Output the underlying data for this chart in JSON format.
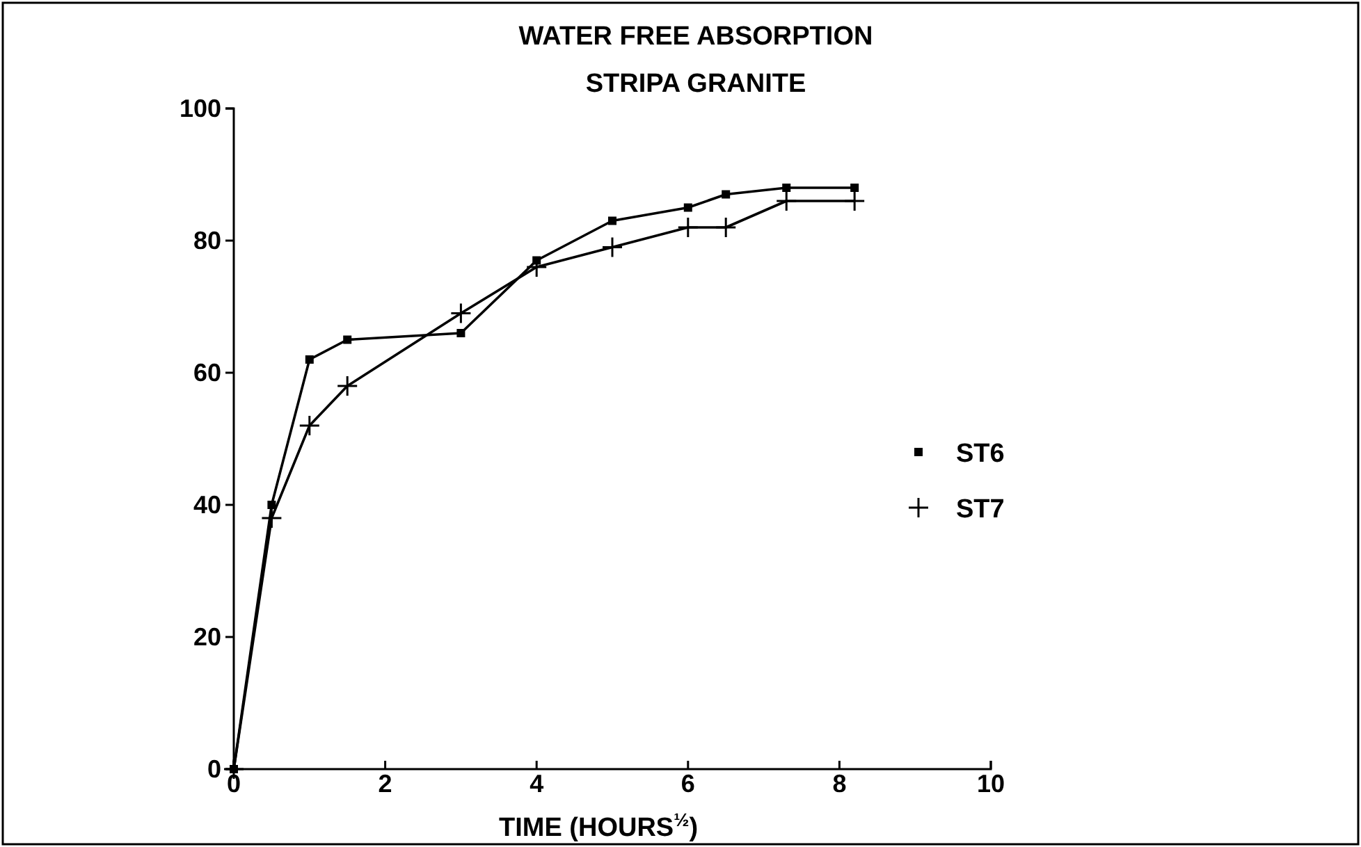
{
  "chart_data": {
    "type": "line",
    "title": "WATER FREE ABSORPTION",
    "subtitle": "STRIPA GRANITE",
    "xlabel": "TIME (HOURS$^{½}$)",
    "xlim": [
      0,
      10
    ],
    "xticks": [
      0,
      2,
      4,
      6,
      8,
      10
    ],
    "ylim": [
      0,
      100
    ],
    "yticks": [
      0,
      20,
      40,
      60,
      80,
      100
    ],
    "grid": false,
    "legend": "right",
    "line_style": "solid",
    "series": [
      {
        "name": "ST6",
        "color": "#000000",
        "marker": "square",
        "x": [
          0,
          0.5,
          1,
          1.5,
          3,
          4,
          5,
          6,
          6.5,
          7.3,
          8.2
        ],
        "values": [
          0,
          40,
          62,
          65,
          66,
          77,
          83,
          85,
          87,
          88,
          88
        ]
      },
      {
        "name": "ST7",
        "color": "#000000",
        "marker": "cross",
        "x": [
          0,
          0.5,
          1,
          1.5,
          3,
          4,
          5,
          6,
          6.5,
          7.3,
          8.2
        ],
        "values": [
          0,
          38,
          52,
          58,
          69,
          76,
          79,
          82,
          82,
          86,
          86
        ]
      }
    ]
  }
}
